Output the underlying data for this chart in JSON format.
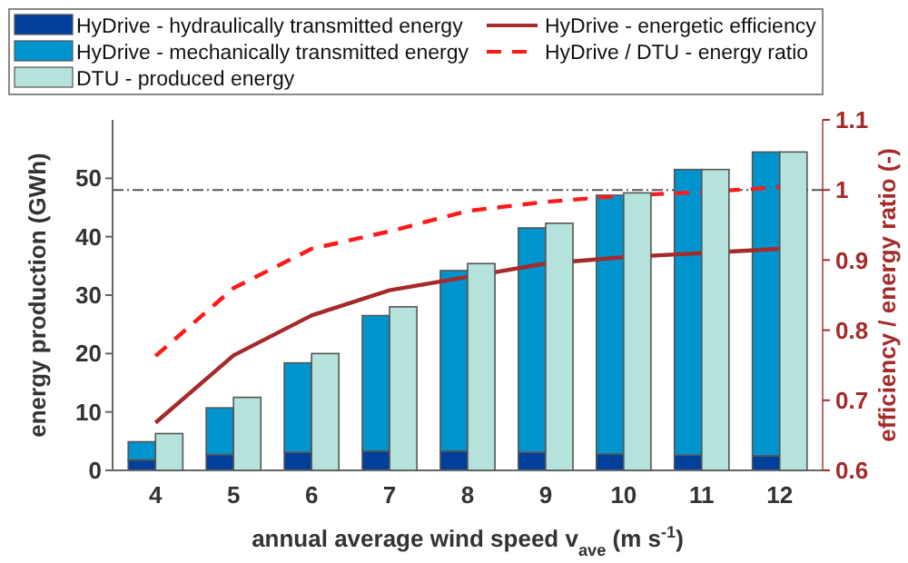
{
  "chart_data": [
    {
      "type": "bar",
      "stacked": true,
      "xlabel": "annual average wind speed v$_{ave}$ (m s$^{-1}$)",
      "ylabel": "energy production  (GWh)",
      "y2label": "efficiency / energy ratio  (-)",
      "categories": [
        "4",
        "5",
        "6",
        "7",
        "8",
        "9",
        "10",
        "11",
        "12"
      ],
      "series": [
        {
          "name": "HyDrive - hydraulically transmitted energy",
          "color": "#003f9a",
          "values": [
            1.8,
            2.7,
            3.1,
            3.3,
            3.3,
            3.1,
            2.8,
            2.6,
            2.5
          ]
        },
        {
          "name": "HyDrive - mechanically transmitted energy",
          "color": "#0094cf",
          "values": [
            3.1,
            8.0,
            15.3,
            23.2,
            30.9,
            38.4,
            44.3,
            48.9,
            52.0
          ]
        },
        {
          "name": "HyDrive - energetic efficiency",
          "type": "line",
          "axis": "y2",
          "color": "#a52a2a",
          "line_style": "solid",
          "values": [
            0.668,
            0.764,
            0.821,
            0.857,
            0.876,
            0.895,
            0.904,
            0.91,
            0.916
          ]
        },
        {
          "name": "HyDrive / DTU - energy ratio",
          "type": "line",
          "axis": "y2",
          "color": "#ff1a1a",
          "line_style": "dashed",
          "values": [
            0.763,
            0.86,
            0.916,
            0.941,
            0.97,
            0.983,
            0.992,
            0.997,
            1.004
          ]
        }
      ],
      "ylim": [
        0,
        60
      ],
      "yticks": [
        0,
        10,
        20,
        30,
        40,
        50
      ],
      "y2lim": [
        0.6,
        1.1
      ],
      "y2ticks": [
        0.6,
        0.7,
        0.8,
        0.9,
        1,
        1.1
      ],
      "ref_lines": [
        {
          "axis": "y2",
          "value": 1,
          "color": "#555555",
          "line_style": "dashdot"
        }
      ],
      "legend": "top"
    },
    {
      "type": "bar",
      "categories": [
        "4",
        "5",
        "6",
        "7",
        "8",
        "9",
        "10",
        "11",
        "12"
      ],
      "series": [
        {
          "name": "DTU - produced energy",
          "color": "#b5e3dc",
          "values": [
            6.3,
            12.5,
            20.0,
            28.0,
            35.4,
            42.3,
            47.5,
            51.5,
            54.5
          ]
        }
      ],
      "ylim": [
        0,
        60
      ],
      "tick_labels": false,
      "legend": "top"
    }
  ]
}
